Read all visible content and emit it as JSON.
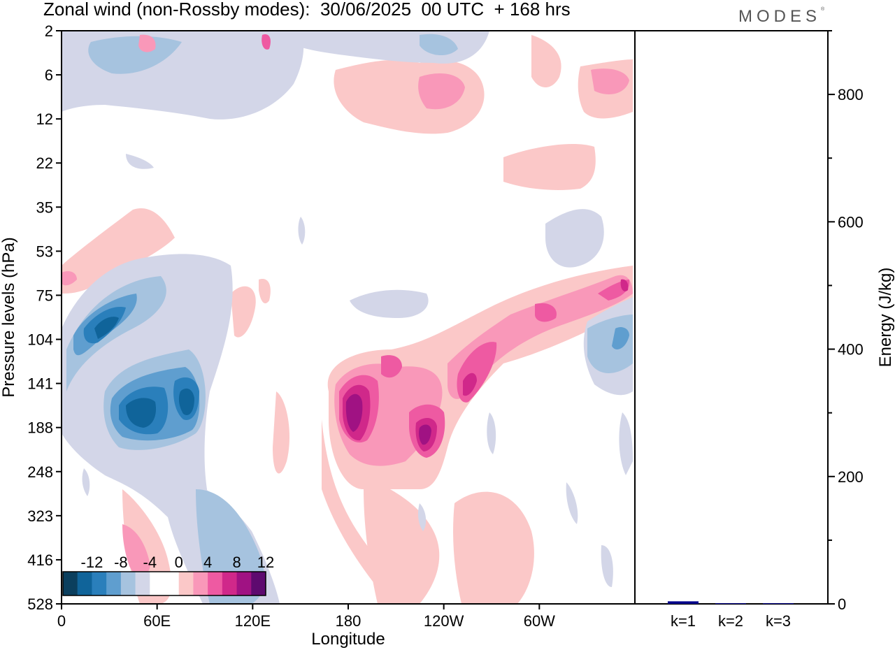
{
  "header": {
    "title": "Zonal wind (non-Rossby modes):  30/06/2025  00 UTC  + 168 hrs",
    "logo": "MODES",
    "logo_mark": "®"
  },
  "chart_data": [
    {
      "type": "heatmap",
      "title": "Zonal wind (non-Rossby modes):  30/06/2025  00 UTC  + 168 hrs",
      "xlabel": "Longitude",
      "ylabel": "Pressure levels (hPa)",
      "x_ticks": [
        "0",
        "60E",
        "120E",
        "180",
        "120W",
        "60W"
      ],
      "x_tick_degrees": [
        0,
        60,
        120,
        180,
        240,
        300
      ],
      "xlim": [
        0,
        360
      ],
      "y_ticks": [
        "2",
        "6",
        "12",
        "22",
        "35",
        "53",
        "75",
        "104",
        "141",
        "188",
        "248",
        "323",
        "416",
        "528"
      ],
      "colorbar": {
        "labels": [
          "-12",
          "-8",
          "-4",
          "0",
          "4",
          "8",
          "12"
        ],
        "colors": [
          "#0b3f5e",
          "#10649a",
          "#2a7fbb",
          "#5f9ecf",
          "#a6c3df",
          "#d3d6e8",
          "#ffffff",
          "#ffffff",
          "#fbc8c8",
          "#f998b9",
          "#ee5aa2",
          "#d0288a",
          "#a01283",
          "#5e0a6f"
        ]
      },
      "features": [
        {
          "sign": "negative",
          "lon_range": [
            35,
            55
          ],
          "level_range": [
            "141",
            "188"
          ],
          "value": -13
        },
        {
          "sign": "negative",
          "lon_range": [
            70,
            85
          ],
          "level_range": [
            "141",
            "188"
          ],
          "value": -12
        },
        {
          "sign": "negative",
          "lon_range": [
            20,
            35
          ],
          "level_range": [
            "75",
            "104"
          ],
          "value": -11
        },
        {
          "sign": "positive",
          "lon_range": [
            175,
            190
          ],
          "level_range": [
            "141",
            "188"
          ],
          "value": 13
        },
        {
          "sign": "positive",
          "lon_range": [
            225,
            235
          ],
          "level_range": [
            "188",
            "248"
          ],
          "value": 12
        },
        {
          "sign": "positive",
          "lon_range": [
            250,
            260
          ],
          "level_range": [
            "104",
            "141"
          ],
          "value": 11
        },
        {
          "sign": "positive",
          "lon_range": [
            340,
            360
          ],
          "level_range": [
            "53",
            "75"
          ],
          "value": 9
        }
      ]
    },
    {
      "type": "bar",
      "ylabel": "Energy (J/kg)",
      "ylim": [
        0,
        900
      ],
      "y_ticks": [
        0,
        200,
        400,
        600,
        800
      ],
      "categories": [
        "k=1",
        "k=2",
        "k=3"
      ],
      "values": [
        4,
        1,
        1
      ],
      "bar_color": "#00008b"
    }
  ]
}
